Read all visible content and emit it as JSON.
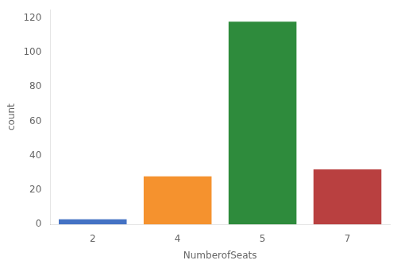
{
  "chart_data": {
    "type": "bar",
    "categories": [
      "2",
      "4",
      "5",
      "7"
    ],
    "values": [
      3,
      28,
      118,
      32
    ],
    "colors": [
      "#4472c4",
      "#f5922e",
      "#2e8b3c",
      "#b94040"
    ],
    "xlabel": "NumberofSeats",
    "ylabel": "count",
    "ylim": [
      0,
      125
    ],
    "yticks": [
      0,
      20,
      40,
      60,
      80,
      100,
      120
    ],
    "grid": false
  }
}
